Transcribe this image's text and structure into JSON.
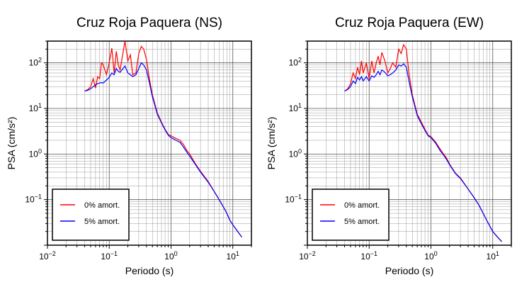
{
  "chart_data": [
    {
      "type": "line",
      "title": "Cruz Roja Paquera (NS)",
      "xlabel": "Periodo (s)",
      "ylabel": "PSA (cm/s²)",
      "xscale": "log",
      "yscale": "log",
      "xlim": [
        0.01,
        20
      ],
      "ylim": [
        0.01,
        300
      ],
      "grid": true,
      "legend_position": "bottom-left",
      "x_ticks": [
        {
          "label": "10",
          "exp": "−2"
        },
        {
          "label": "10",
          "exp": "−1"
        },
        {
          "label": "10",
          "exp": "0"
        },
        {
          "label": "10",
          "exp": "1"
        }
      ],
      "y_ticks": [
        {
          "label": "10",
          "exp": "−1"
        },
        {
          "label": "10",
          "exp": "0"
        },
        {
          "label": "10",
          "exp": "1"
        },
        {
          "label": "10",
          "exp": "2"
        }
      ],
      "series": [
        {
          "name": "0% amort.",
          "color": "#ff0000",
          "x": [
            0.04,
            0.045,
            0.05,
            0.055,
            0.06,
            0.065,
            0.07,
            0.075,
            0.08,
            0.09,
            0.1,
            0.11,
            0.12,
            0.13,
            0.14,
            0.15,
            0.16,
            0.18,
            0.2,
            0.22,
            0.24,
            0.27,
            0.3,
            0.33,
            0.36,
            0.4,
            0.44,
            0.5,
            0.6,
            0.7,
            0.8,
            0.9,
            1.0,
            1.2,
            1.4,
            1.6,
            1.8,
            2.0,
            2.5,
            3.0,
            4.0,
            5.0,
            6.0,
            7.0,
            8.0,
            9.0,
            10,
            12,
            14
          ],
          "y": [
            24,
            26,
            30,
            45,
            28,
            50,
            45,
            100,
            90,
            55,
            100,
            210,
            60,
            180,
            90,
            70,
            120,
            300,
            110,
            150,
            55,
            60,
            160,
            230,
            200,
            120,
            50,
            20,
            8,
            5,
            3.5,
            2.7,
            2.5,
            2.2,
            2.0,
            1.6,
            1.2,
            1.0,
            0.6,
            0.42,
            0.25,
            0.15,
            0.1,
            0.07,
            0.05,
            0.035,
            0.028,
            0.02,
            0.015
          ]
        },
        {
          "name": "5% amort.",
          "color": "#0000ff",
          "x": [
            0.04,
            0.045,
            0.05,
            0.055,
            0.06,
            0.065,
            0.07,
            0.075,
            0.08,
            0.09,
            0.1,
            0.11,
            0.12,
            0.13,
            0.14,
            0.15,
            0.16,
            0.18,
            0.2,
            0.22,
            0.24,
            0.27,
            0.3,
            0.33,
            0.36,
            0.4,
            0.44,
            0.5,
            0.6,
            0.7,
            0.8,
            0.9,
            1.0,
            1.2,
            1.4,
            1.6,
            1.8,
            2.0,
            2.5,
            3.0,
            4.0,
            5.0,
            6.0,
            7.0,
            8.0,
            9.0,
            10,
            12,
            14
          ],
          "y": [
            24,
            25,
            27,
            30,
            33,
            35,
            36,
            37,
            36,
            42,
            48,
            60,
            55,
            75,
            65,
            62,
            70,
            85,
            60,
            55,
            50,
            55,
            75,
            100,
            90,
            70,
            40,
            18,
            7.5,
            4.8,
            3.4,
            2.6,
            2.3,
            2.0,
            1.8,
            1.4,
            1.1,
            0.9,
            0.58,
            0.4,
            0.24,
            0.15,
            0.1,
            0.07,
            0.05,
            0.035,
            0.028,
            0.02,
            0.015
          ]
        }
      ]
    },
    {
      "type": "line",
      "title": "Cruz Roja Paquera (EW)",
      "xlabel": "Periodo (s)",
      "ylabel": "PSA (cm/s²)",
      "xscale": "log",
      "yscale": "log",
      "xlim": [
        0.01,
        20
      ],
      "ylim": [
        0.01,
        300
      ],
      "grid": true,
      "legend_position": "bottom-left",
      "x_ticks": [
        {
          "label": "10",
          "exp": "−2"
        },
        {
          "label": "10",
          "exp": "−1"
        },
        {
          "label": "10",
          "exp": "0"
        },
        {
          "label": "10",
          "exp": "1"
        }
      ],
      "y_ticks": [
        {
          "label": "10",
          "exp": "−1"
        },
        {
          "label": "10",
          "exp": "0"
        },
        {
          "label": "10",
          "exp": "1"
        },
        {
          "label": "10",
          "exp": "2"
        }
      ],
      "series": [
        {
          "name": "0% amort.",
          "color": "#ff0000",
          "x": [
            0.04,
            0.045,
            0.05,
            0.055,
            0.06,
            0.065,
            0.07,
            0.075,
            0.08,
            0.09,
            0.1,
            0.11,
            0.12,
            0.13,
            0.14,
            0.15,
            0.16,
            0.18,
            0.2,
            0.22,
            0.24,
            0.27,
            0.3,
            0.33,
            0.36,
            0.4,
            0.44,
            0.5,
            0.6,
            0.7,
            0.8,
            0.9,
            1.0,
            1.2,
            1.4,
            1.6,
            1.8,
            2.0,
            2.5,
            3.0,
            4.0,
            5.0,
            6.0,
            7.0,
            8.0,
            9.0,
            10,
            12,
            14
          ],
          "y": [
            24,
            27,
            35,
            60,
            45,
            80,
            55,
            110,
            60,
            100,
            45,
            110,
            60,
            100,
            140,
            90,
            170,
            110,
            60,
            75,
            100,
            80,
            200,
            160,
            250,
            200,
            60,
            20,
            7.5,
            5,
            3.5,
            2.6,
            2.4,
            1.8,
            1.3,
            1.0,
            0.8,
            0.6,
            0.38,
            0.3,
            0.17,
            0.11,
            0.075,
            0.05,
            0.035,
            0.026,
            0.02,
            0.015,
            0.012
          ]
        },
        {
          "name": "5% amort.",
          "color": "#0000ff",
          "x": [
            0.04,
            0.045,
            0.05,
            0.055,
            0.06,
            0.065,
            0.07,
            0.075,
            0.08,
            0.09,
            0.1,
            0.11,
            0.12,
            0.13,
            0.14,
            0.15,
            0.16,
            0.18,
            0.2,
            0.22,
            0.24,
            0.27,
            0.3,
            0.33,
            0.36,
            0.4,
            0.44,
            0.5,
            0.6,
            0.7,
            0.8,
            0.9,
            1.0,
            1.2,
            1.4,
            1.6,
            1.8,
            2.0,
            2.5,
            3.0,
            4.0,
            5.0,
            6.0,
            7.0,
            8.0,
            9.0,
            10,
            12,
            14
          ],
          "y": [
            24,
            26,
            30,
            40,
            35,
            48,
            42,
            50,
            40,
            50,
            40,
            52,
            48,
            55,
            65,
            55,
            70,
            62,
            52,
            55,
            60,
            70,
            90,
            85,
            95,
            80,
            40,
            18,
            7,
            4.6,
            3.3,
            2.5,
            2.3,
            1.7,
            1.2,
            0.95,
            0.75,
            0.58,
            0.37,
            0.29,
            0.17,
            0.11,
            0.075,
            0.05,
            0.035,
            0.026,
            0.02,
            0.015,
            0.012
          ]
        }
      ]
    }
  ]
}
